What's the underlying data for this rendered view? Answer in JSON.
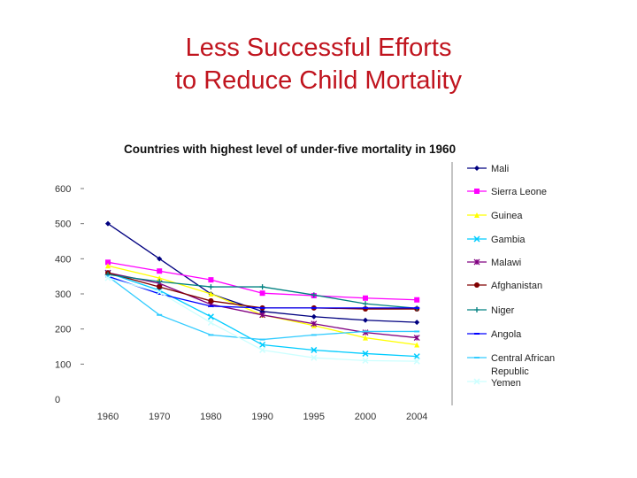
{
  "slide": {
    "title_line1": "Less Successful Efforts",
    "title_line2": "to Reduce Child Mortality"
  },
  "chart_data": {
    "type": "line",
    "title": "Countries with highest level of under-five mortality in 1960",
    "xlabel": "",
    "ylabel": "",
    "categories": [
      "1960",
      "1970",
      "1980",
      "1990",
      "1995",
      "2000",
      "2004"
    ],
    "ylim": [
      0,
      600
    ],
    "yticks": [
      0,
      100,
      200,
      300,
      400,
      500,
      600
    ],
    "grid": false,
    "legend_position": "right",
    "series": [
      {
        "name": "Mali",
        "color": "#000080",
        "marker": "diamond",
        "values": [
          500,
          400,
          300,
          250,
          235,
          225,
          219
        ]
      },
      {
        "name": "Sierra Leone",
        "color": "#ff00ff",
        "marker": "square",
        "values": [
          390,
          365,
          340,
          302,
          295,
          288,
          283
        ]
      },
      {
        "name": "Guinea",
        "color": "#ffff00",
        "marker": "triangle",
        "values": [
          380,
          345,
          300,
          240,
          210,
          175,
          155
        ]
      },
      {
        "name": "Gambia",
        "color": "#00ccff",
        "marker": "x",
        "values": [
          360,
          310,
          235,
          155,
          140,
          130,
          122
        ]
      },
      {
        "name": "Malawi",
        "color": "#800080",
        "marker": "star",
        "values": [
          360,
          330,
          270,
          240,
          215,
          190,
          175
        ]
      },
      {
        "name": "Afghanistan",
        "color": "#800000",
        "marker": "circle",
        "values": [
          360,
          320,
          280,
          260,
          260,
          257,
          257
        ]
      },
      {
        "name": "Niger",
        "color": "#008080",
        "marker": "plus",
        "values": [
          355,
          335,
          320,
          320,
          297,
          272,
          259
        ]
      },
      {
        "name": "Angola",
        "color": "#0000ff",
        "marker": "dash",
        "values": [
          350,
          300,
          265,
          260,
          260,
          260,
          260
        ]
      },
      {
        "name": "Central African Republic",
        "color": "#33ccff",
        "marker": "dash",
        "values": [
          350,
          240,
          183,
          170,
          183,
          193,
          193
        ]
      },
      {
        "name": "Yemen",
        "color": "#ccffff",
        "marker": "x",
        "values": [
          345,
          305,
          218,
          140,
          118,
          110,
          108
        ]
      }
    ],
    "legend_labels": [
      "Mali",
      "Sierra Leone",
      "Guinea",
      "Gambia",
      "Malawi",
      "Afghanistan",
      "Niger",
      "Angola",
      "Central African",
      "Republic",
      "Yemen"
    ]
  }
}
